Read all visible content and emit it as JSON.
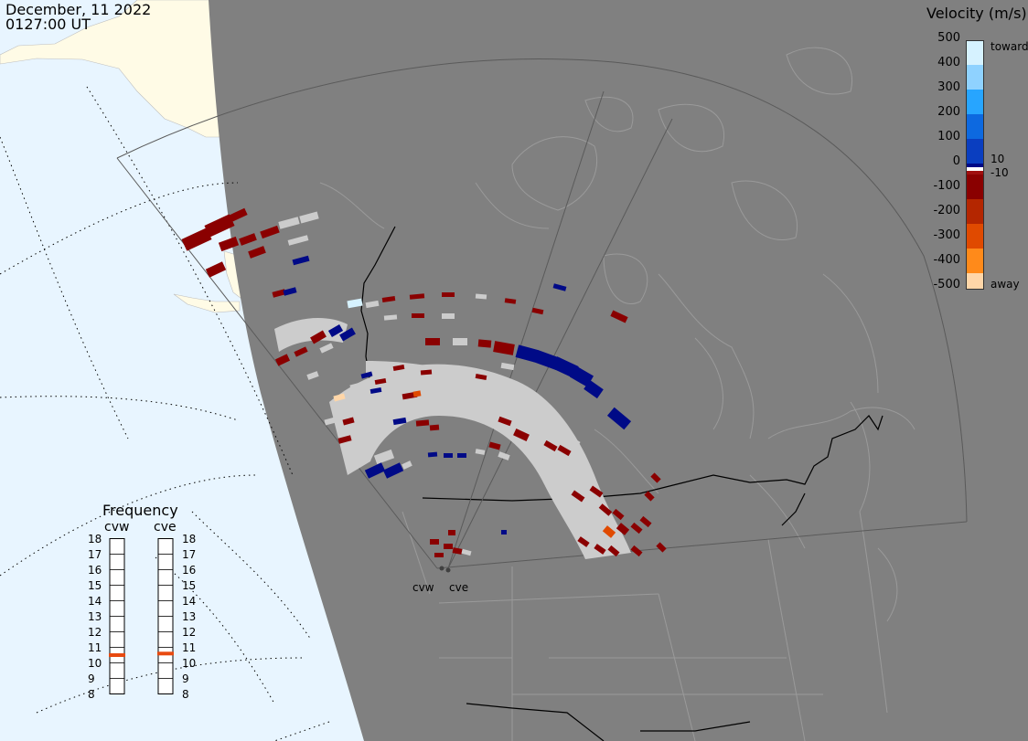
{
  "header": {
    "date": "December, 11 2022",
    "time": "0127:00 UT"
  },
  "velocity_legend": {
    "title": "Velocity (m/s)",
    "ticks": [
      "500",
      "400",
      "300",
      "200",
      "100",
      "0",
      "-100",
      "-200",
      "-300",
      "-400",
      "-500"
    ],
    "toward_label": "toward",
    "away_label": "away",
    "pos_threshold": "10",
    "neg_threshold": "-10",
    "scale_range": [
      -500,
      500
    ],
    "colors": {
      "toward_500": "#d6f2ff",
      "toward_400": "#8fd2ff",
      "toward_300": "#27a5ff",
      "toward_200": "#0d69e0",
      "toward_100": "#0a3ec0",
      "toward_10": "#000a87",
      "away_10": "#a00f0f",
      "away_100": "#8a0000",
      "away_200": "#b42600",
      "away_300": "#e04a00",
      "away_400": "#ff8a1a",
      "away_500": "#ffd6a8",
      "ground_scatter": "#cccccc"
    }
  },
  "frequency_panel": {
    "title": "Frequency",
    "radars": [
      {
        "name": "cvw",
        "frequency_mhz": 10.5
      },
      {
        "name": "cve",
        "frequency_mhz": 10.6
      }
    ],
    "levels": [
      "18",
      "17",
      "16",
      "15",
      "14",
      "13",
      "12",
      "11",
      "10",
      "9",
      "8"
    ],
    "marker_color": "#e84a10"
  },
  "sites": [
    {
      "label": "cvw"
    },
    {
      "label": "cve"
    }
  ],
  "map": {
    "night_color": "#808080",
    "day_ocean_color": "#e8f5ff",
    "day_land_color": "#fffbe6",
    "border_color": "#000000",
    "coast_color": "#9a9a9a"
  }
}
